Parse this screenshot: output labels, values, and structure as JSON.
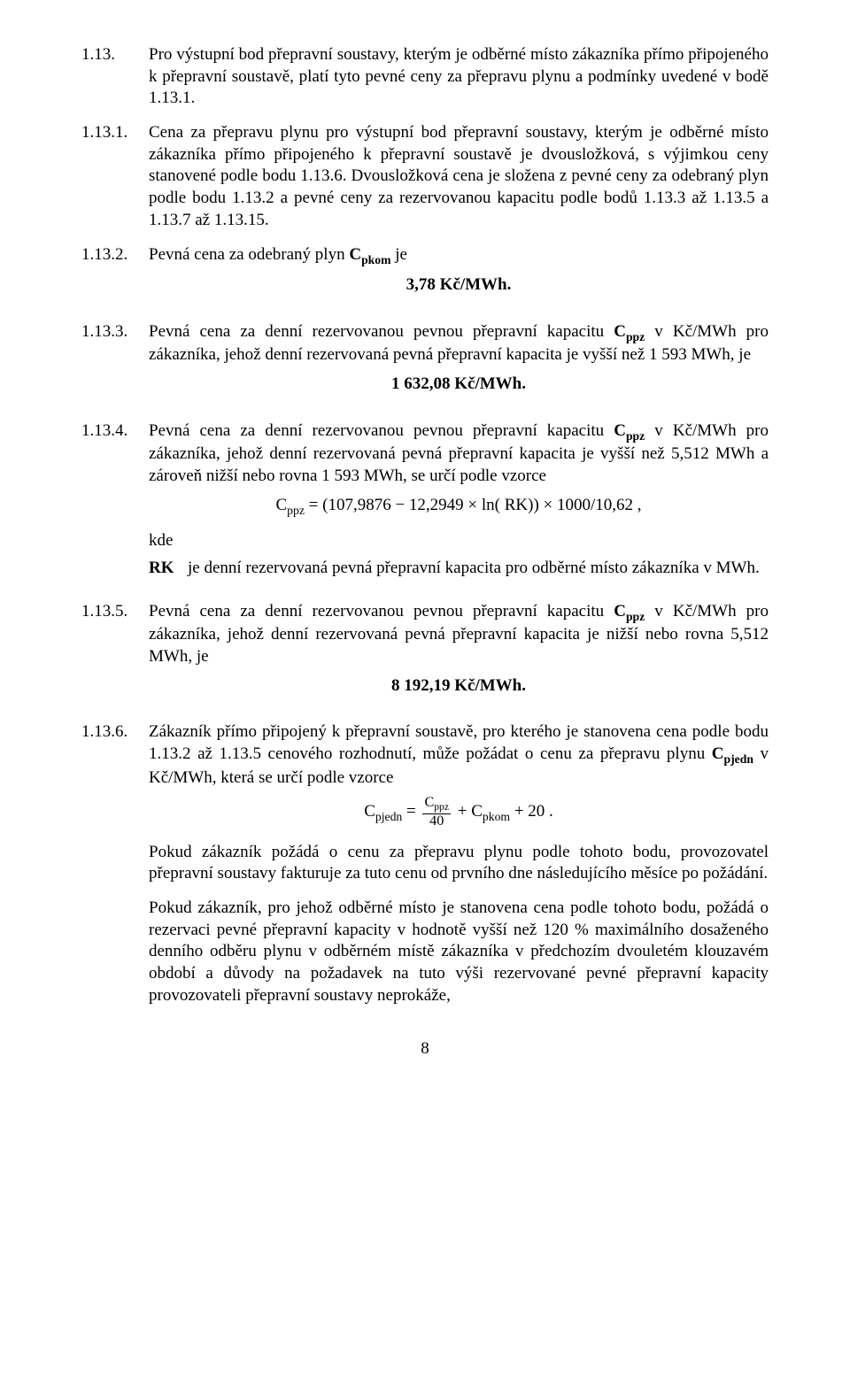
{
  "page": {
    "number": "8",
    "background_color": "#ffffff",
    "text_color": "#000000",
    "font_family": "Times New Roman",
    "base_font_size_pt": 14
  },
  "c1_13": {
    "label": "1.13.",
    "text": "Pro výstupní bod přepravní soustavy, kterým je odběrné místo zákazníka přímo připojeného k přepravní soustavě, platí tyto pevné ceny za přepravu plynu a podmínky uvedené v bodě 1.13.1."
  },
  "c1_13_1": {
    "label": "1.13.1.",
    "text": "Cena za přepravu plynu pro výstupní bod přepravní soustavy, kterým je odběrné místo zákazníka přímo připojeného k přepravní soustavě je dvousložková, s výjimkou ceny stanovené podle bodu 1.13.6. Dvousložková cena je složena z pevné ceny za odebraný plyn podle bodu 1.13.2 a pevné ceny za rezervovanou kapacitu podle bodů 1.13.3 až 1.13.5 a 1.13.7 až 1.13.15."
  },
  "c1_13_2": {
    "label": "1.13.2.",
    "text_prefix": "Pevná cena za odebraný plyn ",
    "sym": "C",
    "sub": "pkom",
    "text_suffix": " je",
    "value": "3,78 Kč/MWh."
  },
  "c1_13_3": {
    "label": "1.13.3.",
    "text_prefix": "Pevná cena za denní rezervovanou pevnou přepravní kapacitu ",
    "sym": "C",
    "sub": "ppz",
    "text_suffix": " v Kč/MWh pro zákazníka, jehož denní rezervovaná pevná přepravní kapacita je vyšší než 1 593 MWh, je",
    "value": "1 632,08 Kč/MWh."
  },
  "c1_13_4": {
    "label": "1.13.4.",
    "text_prefix": "Pevná cena za denní rezervovanou pevnou přepravní kapacitu ",
    "sym": "C",
    "sub": "ppz",
    "text_suffix": " v Kč/MWh pro zákazníka, jehož denní rezervovaná pevná přepravní kapacita je vyšší než 5,512 MWh a zároveň nižší nebo rovna 1 593 MWh, se určí podle vzorce",
    "formula_sym": "C",
    "formula_sub": "ppz",
    "formula_rhs": " = (107,9876 − 12,2949 × ln( RK)) × 1000/10,62 ,",
    "kde": "kde",
    "def_label": "RK",
    "def_text": "je denní rezervovaná pevná přepravní kapacita pro odběrné místo zákazníka v MWh."
  },
  "c1_13_5": {
    "label": "1.13.5.",
    "text_prefix": "Pevná cena za denní rezervovanou pevnou přepravní kapacitu ",
    "sym": "C",
    "sub": "ppz",
    "text_suffix": " v Kč/MWh pro zákazníka, jehož denní rezervovaná pevná přepravní kapacita je nižší nebo rovna 5,512 MWh, je",
    "value": "8 192,19 Kč/MWh."
  },
  "c1_13_6": {
    "label": "1.13.6.",
    "text_a": "Zákazník přímo připojený k přepravní soustavě, pro kterého je stanovena cena podle bodu 1.13.2 až 1.13.5 cenového rozhodnutí, může požádat o cenu za přepravu plynu ",
    "sym": "C",
    "sub": "pjedn",
    "text_b": " v Kč/MWh, která se určí podle vzorce",
    "formula_lhs_sym": "C",
    "formula_lhs_sub": "pjedn",
    "formula_eq": " = ",
    "frac_num_sym": "C",
    "frac_num_sub": "ppz",
    "frac_den": "40",
    "formula_tail_a": " + ",
    "formula_tail_sym": "C",
    "formula_tail_sub": "pkom",
    "formula_tail_b": " + 20 .",
    "para2": "Pokud zákazník požádá o cenu za přepravu plynu podle tohoto bodu, provozovatel přepravní soustavy fakturuje za tuto cenu od prvního dne následujícího měsíce po požádání.",
    "para3": "Pokud zákazník, pro jehož odběrné místo je stanovena cena podle tohoto bodu, požádá o rezervaci pevné přepravní kapacity v hodnotě vyšší než 120 % maximálního dosaženého denního odběru plynu v odběrném místě zákazníka v předchozím dvouletém klouzavém období a důvody na požadavek na tuto výši rezervované pevné přepravní kapacity provozovateli přepravní soustavy neprokáže,"
  }
}
